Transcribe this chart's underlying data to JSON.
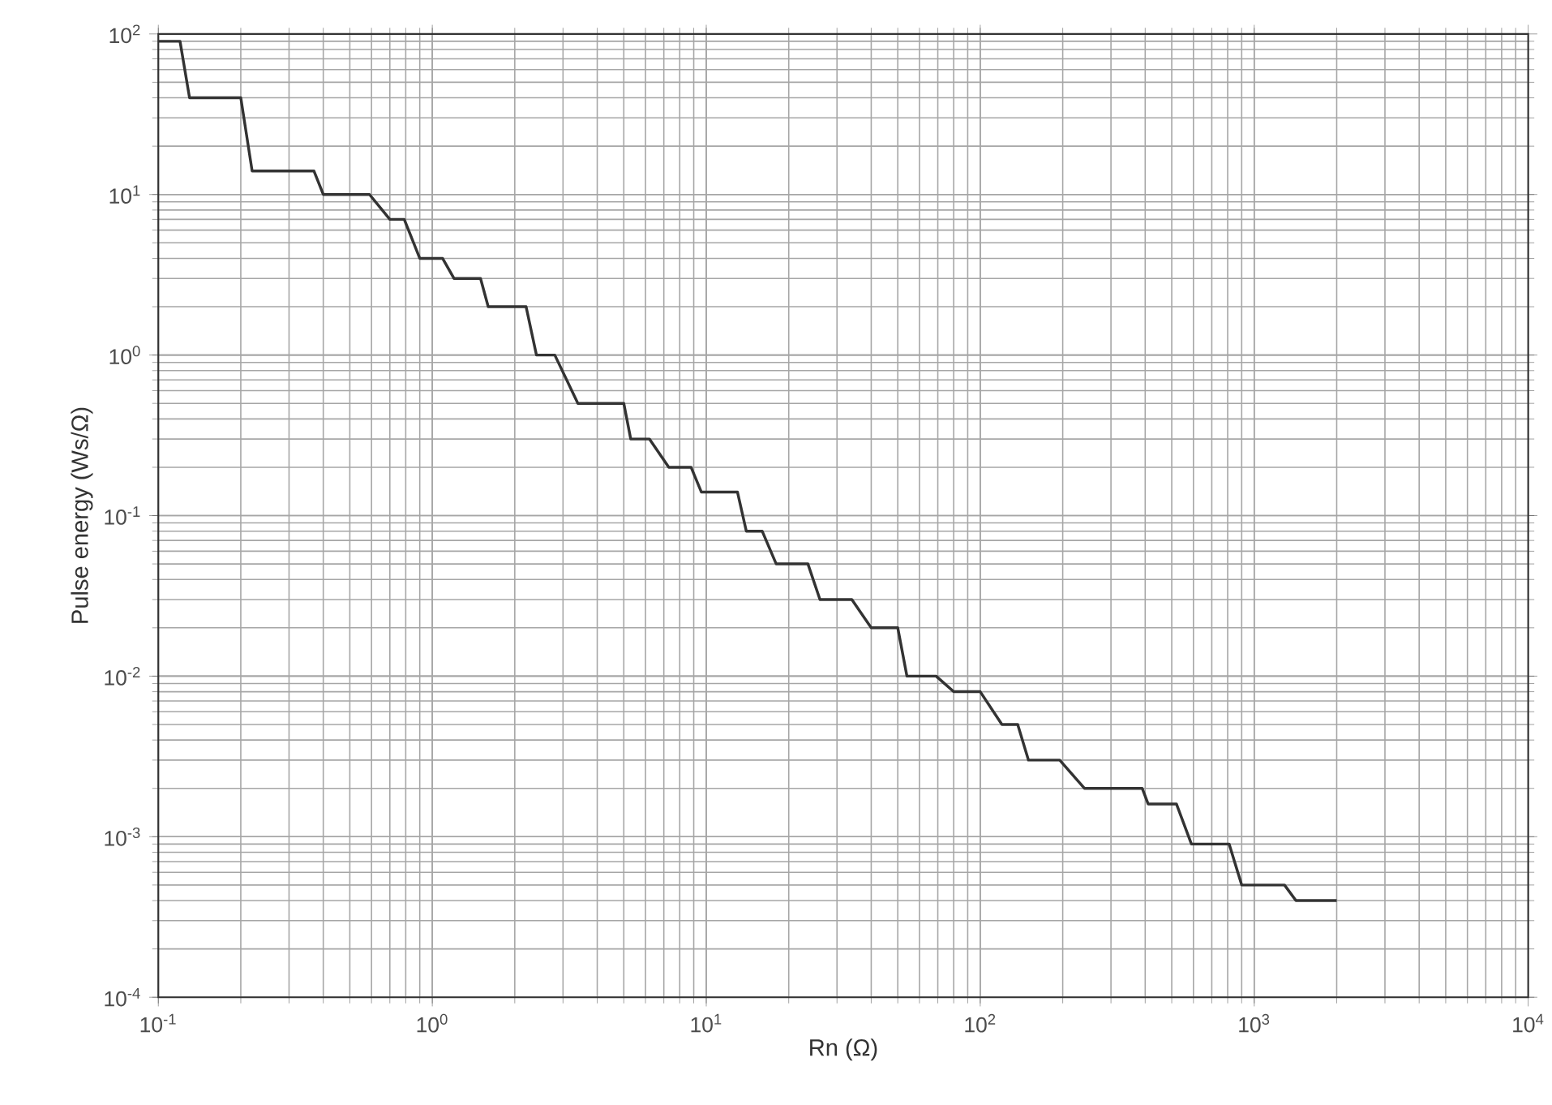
{
  "chart_data": {
    "type": "line",
    "xlabel": "Rn (Ω)",
    "ylabel": "Pulse energy (Ws/Ω)",
    "log": "xy",
    "grid": true,
    "line_style": "solid",
    "marker": "none",
    "xlim": [
      0.1,
      10000
    ],
    "ylim": [
      0.0001,
      100
    ],
    "xticks": [
      {
        "value": 0.1,
        "label": "10$^{-1}$"
      },
      {
        "value": 1,
        "label": "10$^{0}$"
      },
      {
        "value": 10,
        "label": "10$^{1}$"
      },
      {
        "value": 100,
        "label": "10$^{2}$"
      },
      {
        "value": 1000,
        "label": "10$^{3}$"
      },
      {
        "value": 10000,
        "label": "10$^{4}$"
      }
    ],
    "yticks": [
      {
        "value": 0.0001,
        "label": "10$^{-4}$"
      },
      {
        "value": 0.001,
        "label": "10$^{-3}$"
      },
      {
        "value": 0.01,
        "label": "10$^{-2}$"
      },
      {
        "value": 0.1,
        "label": "10$^{-1}$"
      },
      {
        "value": 1,
        "label": "10$^{0}$"
      },
      {
        "value": 10,
        "label": "10$^{1}$"
      },
      {
        "value": 100,
        "label": "10$^{2}$"
      }
    ],
    "series": [
      {
        "color": "#333333",
        "x": [
          0.1,
          0.12,
          0.13,
          0.2,
          0.22,
          0.37,
          0.4,
          0.59,
          0.7,
          0.79,
          0.9,
          1.09,
          1.2,
          1.5,
          1.6,
          2.2,
          2.4,
          2.8,
          3.4,
          5,
          5.3,
          6.2,
          7.3,
          8.8,
          9.6,
          13,
          14,
          16,
          18,
          23.5,
          26,
          34,
          40,
          50,
          54,
          69,
          80,
          100,
          120,
          137,
          150,
          195,
          240,
          390,
          410,
          520,
          590,
          810,
          900,
          1290,
          1420,
          2000
        ],
        "values": [
          90,
          90,
          40,
          40,
          14,
          14,
          10,
          10,
          7,
          7,
          4,
          4,
          3,
          3,
          2,
          2,
          1,
          1,
          0.5,
          0.5,
          0.3,
          0.3,
          0.2,
          0.2,
          0.14,
          0.14,
          0.08,
          0.08,
          0.05,
          0.05,
          0.03,
          0.03,
          0.02,
          0.02,
          0.01,
          0.01,
          0.008,
          0.008,
          0.005,
          0.005,
          0.003,
          0.003,
          0.002,
          0.002,
          0.0016,
          0.0016,
          0.0009,
          0.0009,
          0.0005,
          0.0005,
          0.0004,
          0.0004
        ]
      }
    ]
  }
}
